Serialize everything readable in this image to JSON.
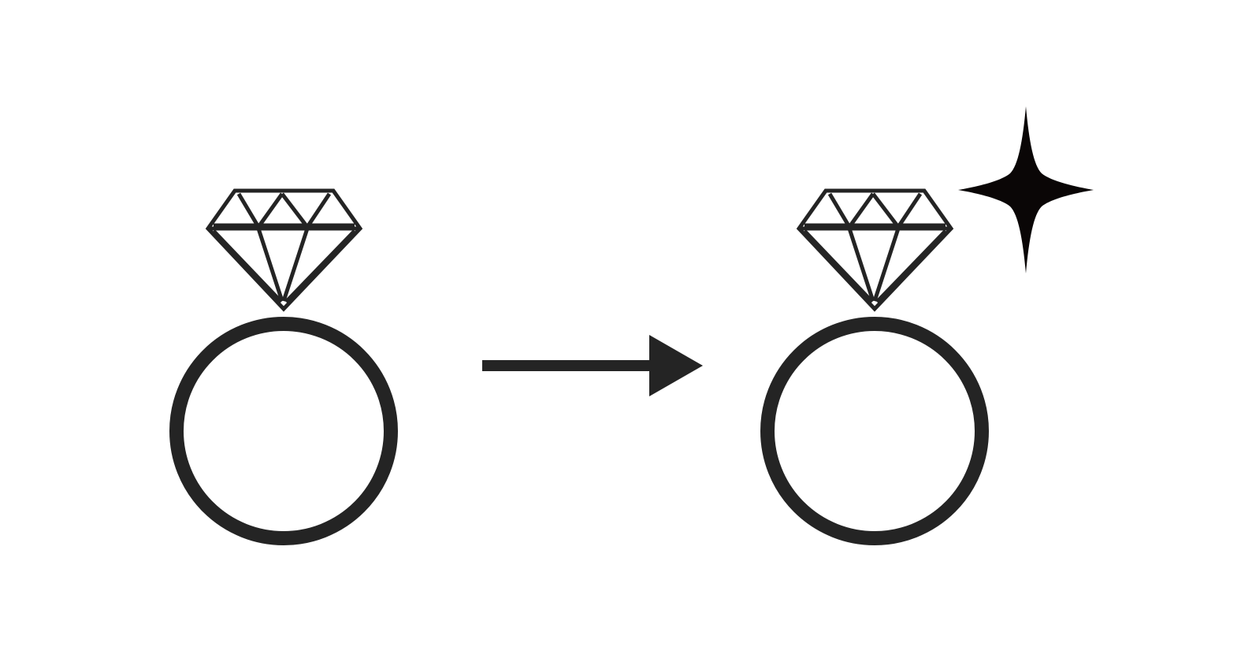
{
  "colors": {
    "background": "#ffffff",
    "stroke": "#242424",
    "sparkle": "#0a0606"
  },
  "diagram": {
    "left_item": {
      "icon": "diamond-ring-icon"
    },
    "connector": {
      "icon": "right-arrow-icon"
    },
    "right_item": {
      "icon": "diamond-ring-icon",
      "accent_icon": "sparkle-icon"
    }
  }
}
